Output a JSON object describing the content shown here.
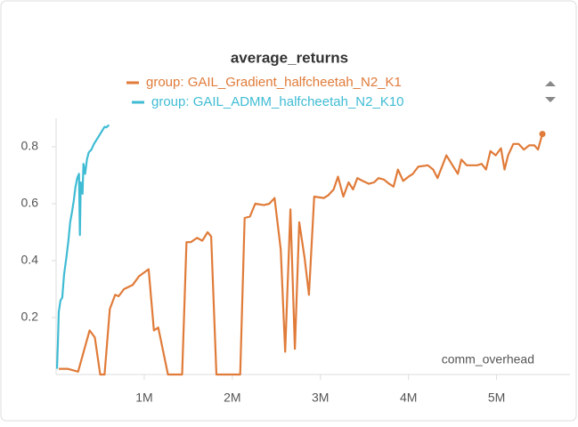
{
  "chart_data": {
    "type": "line",
    "title": "average_returns",
    "x_label": "comm_overhead",
    "xlim": [
      0,
      5550000
    ],
    "ylim": [
      0,
      0.9
    ],
    "xticks": [
      {
        "value": 1000000,
        "label": "1M"
      },
      {
        "value": 2000000,
        "label": "2M"
      },
      {
        "value": 3000000,
        "label": "3M"
      },
      {
        "value": 4000000,
        "label": "4M"
      },
      {
        "value": 5000000,
        "label": "5M"
      }
    ],
    "yticks": [
      0.2,
      0.4,
      0.6,
      0.8
    ],
    "grid": false,
    "series": [
      {
        "name": "group: GAIL_Gradient_halfcheetah_N2_K1",
        "color": "#e07b39",
        "x": [
          30000,
          130000,
          250000,
          380000,
          440000,
          500000,
          550000,
          610000,
          670000,
          710000,
          770000,
          870000,
          940000,
          1050000,
          1110000,
          1160000,
          1270000,
          1430000,
          1480000,
          1530000,
          1600000,
          1660000,
          1720000,
          1760000,
          1820000,
          2090000,
          2140000,
          2200000,
          2260000,
          2360000,
          2420000,
          2480000,
          2550000,
          2600000,
          2660000,
          2710000,
          2760000,
          2820000,
          2870000,
          2930000,
          3040000,
          3090000,
          3150000,
          3200000,
          3260000,
          3320000,
          3370000,
          3420000,
          3480000,
          3550000,
          3610000,
          3660000,
          3720000,
          3780000,
          3830000,
          3880000,
          3940000,
          4000000,
          4050000,
          4110000,
          4220000,
          4280000,
          4330000,
          4430000,
          4490000,
          4560000,
          4600000,
          4660000,
          4780000,
          4830000,
          4880000,
          4930000,
          4990000,
          5050000,
          5090000,
          5130000,
          5190000,
          5250000,
          5310000,
          5370000,
          5430000,
          5470000,
          5520000
        ],
        "values": [
          0.02,
          0.02,
          0.01,
          0.155,
          0.13,
          0.0,
          0.0,
          0.23,
          0.28,
          0.275,
          0.3,
          0.315,
          0.345,
          0.37,
          0.155,
          0.165,
          0.0,
          0.0,
          0.465,
          0.465,
          0.48,
          0.47,
          0.5,
          0.485,
          0.0,
          0.0,
          0.55,
          0.555,
          0.6,
          0.595,
          0.6,
          0.62,
          0.44,
          0.08,
          0.58,
          0.09,
          0.535,
          0.41,
          0.28,
          0.625,
          0.62,
          0.63,
          0.65,
          0.695,
          0.625,
          0.675,
          0.65,
          0.69,
          0.68,
          0.67,
          0.675,
          0.69,
          0.685,
          0.67,
          0.66,
          0.72,
          0.68,
          0.695,
          0.705,
          0.73,
          0.735,
          0.72,
          0.69,
          0.77,
          0.74,
          0.705,
          0.755,
          0.735,
          0.735,
          0.74,
          0.72,
          0.785,
          0.77,
          0.795,
          0.72,
          0.77,
          0.81,
          0.81,
          0.79,
          0.805,
          0.805,
          0.79,
          0.845
        ]
      },
      {
        "name": "group: GAIL_ADMM_halfcheetah_N2_K10",
        "color": "#3fbcd4",
        "x": [
          10000,
          20000,
          30000,
          50000,
          70000,
          90000,
          120000,
          140000,
          160000,
          180000,
          200000,
          220000,
          240000,
          260000,
          270000,
          280000,
          300000,
          310000,
          330000,
          350000,
          370000,
          400000,
          430000,
          460000,
          500000,
          530000,
          550000,
          570000,
          600000
        ],
        "values": [
          0.02,
          0.11,
          0.22,
          0.26,
          0.27,
          0.35,
          0.42,
          0.47,
          0.535,
          0.57,
          0.61,
          0.66,
          0.69,
          0.705,
          0.49,
          0.675,
          0.635,
          0.74,
          0.705,
          0.755,
          0.78,
          0.79,
          0.81,
          0.825,
          0.845,
          0.86,
          0.87,
          0.868,
          0.877
        ]
      }
    ]
  }
}
